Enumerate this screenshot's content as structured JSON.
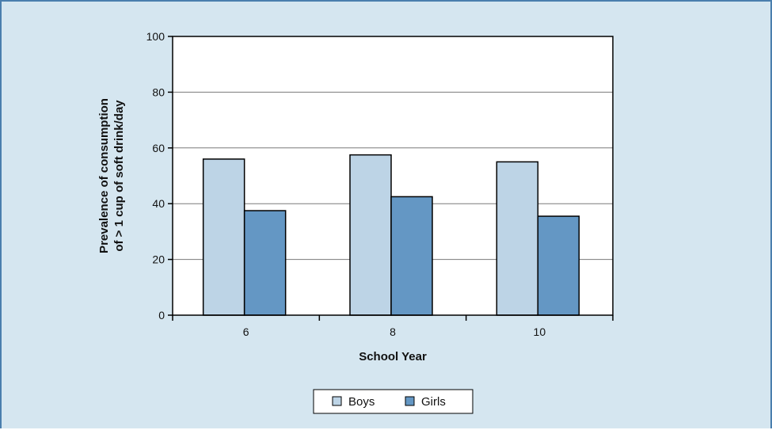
{
  "chart_data": {
    "type": "bar",
    "title": "",
    "xlabel": "School Year",
    "ylabel_lines": [
      "Prevalence of consumption",
      "of > 1 cup of soft drink/day"
    ],
    "categories": [
      "6",
      "8",
      "10"
    ],
    "series": [
      {
        "name": "Boys",
        "values": [
          56,
          57.5,
          55
        ],
        "color": "#bdd4e6"
      },
      {
        "name": "Girls",
        "values": [
          37.5,
          42.5,
          35.5
        ],
        "color": "#6497c4"
      }
    ],
    "ylim": [
      0,
      100
    ],
    "yticks": [
      0,
      20,
      40,
      60,
      80,
      100
    ],
    "grid": true,
    "legend_position": "bottom-center",
    "colors": {
      "background": "#d5e6f0",
      "plot_area": "#ffffff",
      "gridline": "#7a7a7a",
      "axis": "#000000"
    }
  }
}
